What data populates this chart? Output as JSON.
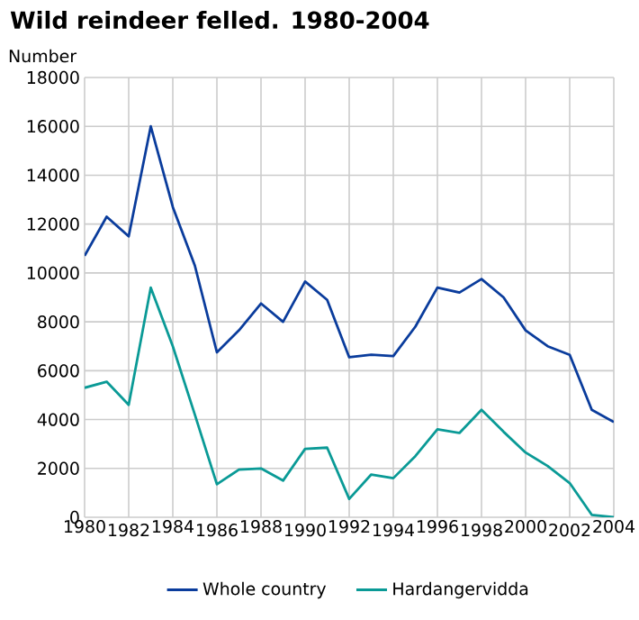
{
  "chart_data": {
    "type": "line",
    "title": "Wild reindeer felled. 1980-2004",
    "ylabel": "Number",
    "x": [
      1980,
      1981,
      1982,
      1983,
      1984,
      1985,
      1986,
      1987,
      1988,
      1989,
      1990,
      1991,
      1992,
      1993,
      1994,
      1995,
      1996,
      1997,
      1998,
      1999,
      2000,
      2001,
      2002,
      2003,
      2004
    ],
    "series": [
      {
        "name": "Whole country",
        "color": "#0a3c9c",
        "values": [
          10700,
          12300,
          11500,
          16000,
          12700,
          10300,
          6750,
          7650,
          8750,
          8000,
          9650,
          8900,
          6550,
          6650,
          6600,
          7800,
          9400,
          9200,
          9750,
          9000,
          7650,
          7000,
          6650,
          4400,
          3900
        ]
      },
      {
        "name": "Hardangervidda",
        "color": "#0a9a96",
        "values": [
          5300,
          5550,
          4600,
          9400,
          7000,
          4200,
          1350,
          1950,
          2000,
          1500,
          2800,
          2850,
          750,
          1750,
          1600,
          2500,
          3600,
          3450,
          4400,
          3500,
          2650,
          2100,
          1400,
          100,
          0
        ]
      }
    ],
    "xlim": [
      1980,
      2004
    ],
    "xticks": [
      1980,
      1982,
      1984,
      1986,
      1988,
      1990,
      1992,
      1994,
      1996,
      1998,
      2000,
      2002,
      2004
    ],
    "ylim": [
      0,
      18000
    ],
    "yticks": [
      0,
      2000,
      4000,
      6000,
      8000,
      10000,
      12000,
      14000,
      16000,
      18000
    ],
    "grid": true,
    "legend": "bottom"
  }
}
